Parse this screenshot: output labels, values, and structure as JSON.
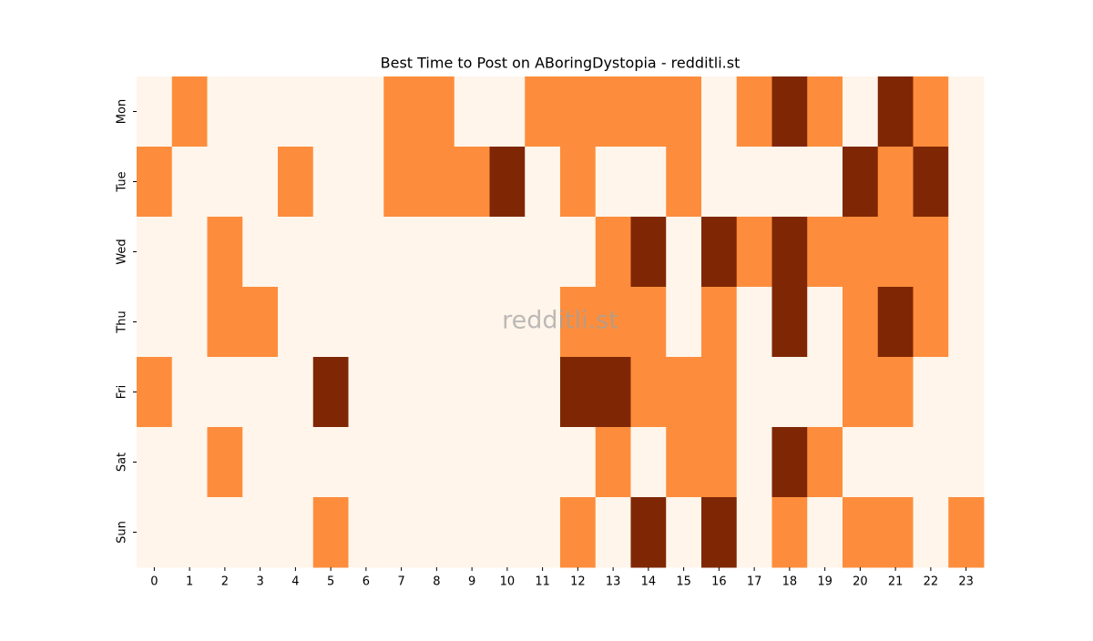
{
  "chart_data": {
    "type": "heatmap",
    "title": "Best Time to Post on ABoringDystopia - redditli.st",
    "watermark": "redditli.st",
    "x": [
      0,
      1,
      2,
      3,
      4,
      5,
      6,
      7,
      8,
      9,
      10,
      11,
      12,
      13,
      14,
      15,
      16,
      17,
      18,
      19,
      20,
      21,
      22,
      23
    ],
    "y": [
      "Mon",
      "Tue",
      "Wed",
      "Thu",
      "Fri",
      "Sat",
      "Sun"
    ],
    "colors": [
      "#fff5eb",
      "#fd8d3c",
      "#7f2704"
    ],
    "z": [
      [
        0,
        1,
        0,
        0,
        0,
        0,
        0,
        1,
        1,
        0,
        0,
        1,
        1,
        1,
        1,
        1,
        0,
        1,
        2,
        1,
        0,
        2,
        1,
        0
      ],
      [
        1,
        0,
        0,
        0,
        1,
        0,
        0,
        1,
        1,
        1,
        2,
        0,
        1,
        0,
        0,
        1,
        0,
        0,
        0,
        0,
        2,
        1,
        2,
        0
      ],
      [
        0,
        0,
        1,
        0,
        0,
        0,
        0,
        0,
        0,
        0,
        0,
        0,
        0,
        1,
        2,
        0,
        2,
        1,
        2,
        1,
        1,
        1,
        1,
        0
      ],
      [
        0,
        0,
        1,
        1,
        0,
        0,
        0,
        0,
        0,
        0,
        0,
        0,
        1,
        1,
        1,
        0,
        1,
        0,
        2,
        0,
        1,
        2,
        1,
        0
      ],
      [
        1,
        0,
        0,
        0,
        0,
        2,
        0,
        0,
        0,
        0,
        0,
        0,
        2,
        2,
        1,
        1,
        1,
        0,
        0,
        0,
        1,
        1,
        0,
        0
      ],
      [
        0,
        0,
        1,
        0,
        0,
        0,
        0,
        0,
        0,
        0,
        0,
        0,
        0,
        1,
        0,
        1,
        1,
        0,
        2,
        1,
        0,
        0,
        0,
        0
      ],
      [
        0,
        0,
        0,
        0,
        0,
        1,
        0,
        0,
        0,
        0,
        0,
        0,
        1,
        0,
        2,
        0,
        2,
        0,
        1,
        0,
        1,
        1,
        0,
        1
      ]
    ]
  }
}
